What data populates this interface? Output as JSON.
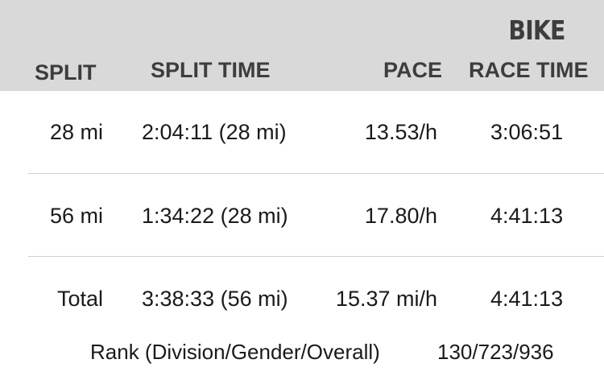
{
  "section_title": "BIKE",
  "columns": {
    "split": "SPLIT",
    "split_time": "SPLIT TIME",
    "pace": "PACE",
    "race_time": "RACE TIME"
  },
  "rows": [
    {
      "split": "28 mi",
      "split_time": "2:04:11 (28 mi)",
      "pace": "13.53/h",
      "race_time": "3:06:51"
    },
    {
      "split": "56 mi",
      "split_time": "1:34:22 (28 mi)",
      "pace": "17.80/h",
      "race_time": "4:41:13"
    },
    {
      "split": "Total",
      "split_time": "3:38:33 (56 mi)",
      "pace": "15.37 mi/h",
      "race_time": "4:41:13"
    }
  ],
  "rank": {
    "label": "Rank (Division/Gender/Overall)",
    "value": "130/723/936"
  }
}
